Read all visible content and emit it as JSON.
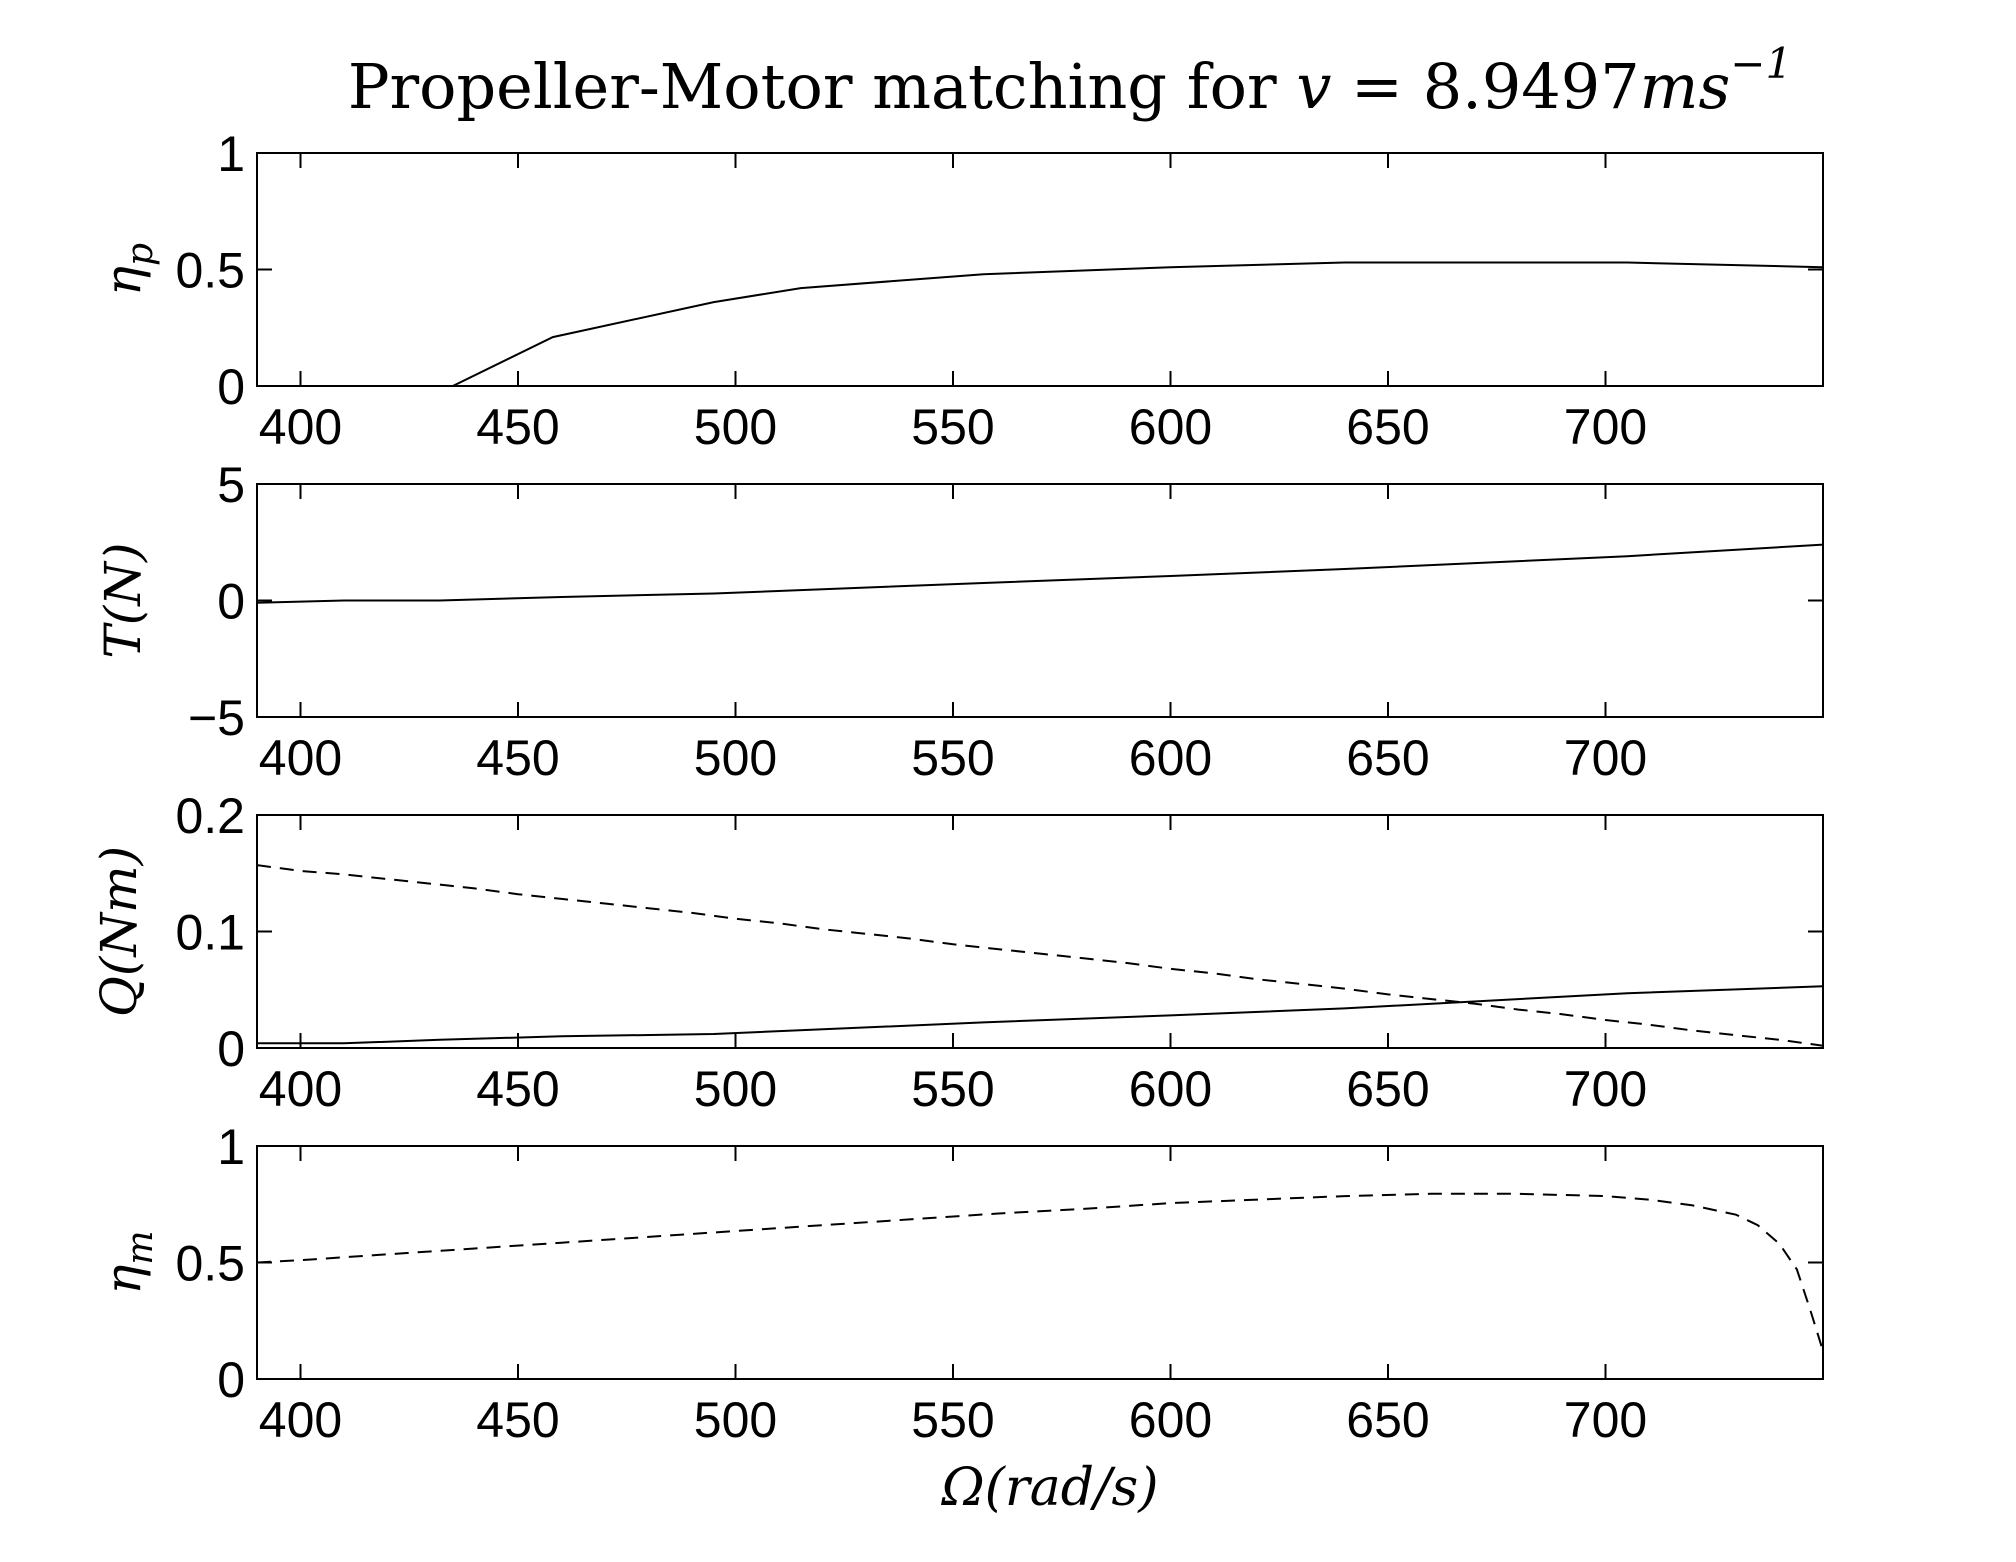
{
  "chart_data": [
    {
      "type": "line",
      "title": "Propeller-Motor matching for v = 8.9497ms⁻¹",
      "title_parts": {
        "text": "Propeller-Motor matching for ",
        "var": "v",
        "eq": " = 8.9497",
        "unit": "ms",
        "exp": "−1"
      },
      "ylabel": "ηp",
      "ylabel_main": "η",
      "ylabel_sub": "p",
      "xlim": [
        390,
        750
      ],
      "ylim": [
        0,
        1
      ],
      "xticks": [
        400,
        450,
        500,
        550,
        600,
        650,
        700
      ],
      "yticks": [
        0,
        0.5,
        1
      ],
      "ytick_labels": [
        "0",
        "0.5",
        "1"
      ],
      "series": [
        {
          "style": "solid",
          "x": [
            435,
            458,
            495,
            515,
            557,
            600,
            640,
            705,
            750
          ],
          "y": [
            0,
            0.21,
            0.36,
            0.42,
            0.48,
            0.51,
            0.53,
            0.53,
            0.51
          ]
        }
      ]
    },
    {
      "type": "line",
      "ylabel": "T(N)",
      "xlim": [
        390,
        750
      ],
      "ylim": [
        -5,
        5
      ],
      "xticks": [
        400,
        450,
        500,
        550,
        600,
        650,
        700
      ],
      "yticks": [
        -5,
        0,
        5
      ],
      "ytick_labels": [
        "−5",
        "0",
        "5"
      ],
      "series": [
        {
          "style": "solid",
          "x": [
            390,
            410,
            432,
            460,
            495,
            557,
            600,
            640,
            705,
            750
          ],
          "y": [
            -0.1,
            0.0,
            0.0,
            0.15,
            0.3,
            0.75,
            1.05,
            1.35,
            1.9,
            2.4
          ]
        }
      ]
    },
    {
      "type": "line",
      "ylabel": "Q(Nm)",
      "xlim": [
        390,
        750
      ],
      "ylim": [
        0,
        0.2
      ],
      "xticks": [
        400,
        450,
        500,
        550,
        600,
        650,
        700
      ],
      "yticks": [
        0,
        0.1,
        0.2
      ],
      "ytick_labels": [
        "0",
        "0.1",
        "0.2"
      ],
      "series": [
        {
          "style": "solid",
          "x": [
            390,
            410,
            432,
            460,
            495,
            557,
            600,
            640,
            705,
            750
          ],
          "y": [
            0.004,
            0.004,
            0.007,
            0.01,
            0.012,
            0.022,
            0.028,
            0.034,
            0.047,
            0.053
          ]
        },
        {
          "style": "dashed",
          "x": [
            390,
            400,
            410,
            420,
            430,
            440,
            450,
            460,
            470,
            480,
            490,
            500,
            510,
            520,
            530,
            540,
            550,
            560,
            570,
            580,
            590,
            600,
            610,
            620,
            630,
            640,
            650,
            660,
            670,
            680,
            690,
            700,
            710,
            720,
            730,
            740,
            750
          ],
          "y": [
            0.157,
            0.152,
            0.149,
            0.145,
            0.141,
            0.137,
            0.132,
            0.128,
            0.124,
            0.12,
            0.116,
            0.111,
            0.107,
            0.102,
            0.098,
            0.094,
            0.089,
            0.085,
            0.081,
            0.077,
            0.073,
            0.068,
            0.064,
            0.059,
            0.055,
            0.051,
            0.046,
            0.042,
            0.038,
            0.033,
            0.029,
            0.024,
            0.02,
            0.015,
            0.011,
            0.007,
            0.002
          ]
        }
      ]
    },
    {
      "type": "line",
      "ylabel": "ηm",
      "ylabel_main": "η",
      "ylabel_sub": "m",
      "xlabel": "Ω(rad/s)",
      "xlim": [
        390,
        750
      ],
      "ylim": [
        0,
        1
      ],
      "xticks": [
        400,
        450,
        500,
        550,
        600,
        650,
        700
      ],
      "yticks": [
        0,
        0.5,
        1
      ],
      "ytick_labels": [
        "0",
        "0.5",
        "1"
      ],
      "series": [
        {
          "style": "dashed",
          "x": [
            390,
            400,
            420,
            440,
            460,
            480,
            500,
            520,
            540,
            560,
            580,
            600,
            620,
            640,
            660,
            680,
            700,
            710,
            720,
            730,
            735,
            740,
            744,
            747,
            750
          ],
          "y": [
            0.5,
            0.51,
            0.535,
            0.56,
            0.585,
            0.61,
            0.635,
            0.66,
            0.685,
            0.71,
            0.73,
            0.755,
            0.77,
            0.785,
            0.795,
            0.795,
            0.785,
            0.77,
            0.745,
            0.705,
            0.66,
            0.58,
            0.47,
            0.3,
            0.12
          ]
        }
      ]
    }
  ]
}
